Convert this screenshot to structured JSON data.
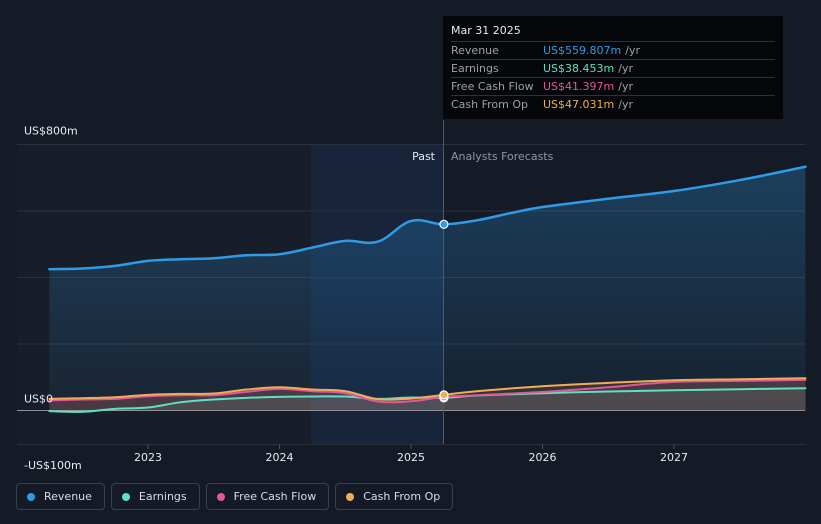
{
  "tooltip": {
    "date": "Mar 31 2025",
    "rows": [
      {
        "label": "Revenue",
        "value": "US$559.807m",
        "unit": "/yr",
        "color": "#2f9be6"
      },
      {
        "label": "Earnings",
        "value": "US$38.453m",
        "unit": "/yr",
        "color": "#5fe0c2"
      },
      {
        "label": "Free Cash Flow",
        "value": "US$41.397m",
        "unit": "/yr",
        "color": "#e0579a"
      },
      {
        "label": "Cash From Op",
        "value": "US$47.031m",
        "unit": "/yr",
        "color": "#f0ad57"
      }
    ]
  },
  "legend": [
    {
      "label": "Revenue",
      "color": "#2f9be6"
    },
    {
      "label": "Earnings",
      "color": "#5fe0c2"
    },
    {
      "label": "Free Cash Flow",
      "color": "#e0579a"
    },
    {
      "label": "Cash From Op",
      "color": "#f0ad57"
    }
  ],
  "chart_data": {
    "type": "line",
    "past_label": "Past",
    "forecast_label": "Analysts Forecasts",
    "divider_x": 2025.25,
    "ylim": [
      -100,
      800
    ],
    "y_tick_labels": [
      {
        "value": 800,
        "label": "US$800m"
      },
      {
        "value": 0,
        "label": "US$0"
      },
      {
        "value": -100,
        "label": "-US$100m"
      }
    ],
    "x_ticks": [
      {
        "value": 2023,
        "label": "2023"
      },
      {
        "value": 2024,
        "label": "2024"
      },
      {
        "value": 2025,
        "label": "2025"
      },
      {
        "value": 2026,
        "label": "2026"
      },
      {
        "value": 2027,
        "label": "2027"
      }
    ],
    "series": [
      {
        "name": "Revenue",
        "color": "#2f9be6",
        "points": [
          [
            2022.25,
            425
          ],
          [
            2022.5,
            427
          ],
          [
            2022.75,
            435
          ],
          [
            2023.0,
            450
          ],
          [
            2023.25,
            455
          ],
          [
            2023.5,
            458
          ],
          [
            2023.75,
            467
          ],
          [
            2024.0,
            470
          ],
          [
            2024.25,
            490
          ],
          [
            2024.5,
            510
          ],
          [
            2024.75,
            508
          ],
          [
            2025.0,
            570
          ],
          [
            2025.25,
            560
          ],
          [
            2025.5,
            572
          ],
          [
            2025.75,
            593
          ],
          [
            2026.0,
            612
          ],
          [
            2026.5,
            637
          ],
          [
            2027.0,
            660
          ],
          [
            2027.5,
            693
          ],
          [
            2028.0,
            733
          ]
        ]
      },
      {
        "name": "Earnings",
        "color": "#5fe0c2",
        "points": [
          [
            2022.25,
            -2
          ],
          [
            2022.5,
            -4
          ],
          [
            2022.75,
            5
          ],
          [
            2023.0,
            9
          ],
          [
            2023.25,
            25
          ],
          [
            2023.5,
            33
          ],
          [
            2023.75,
            38
          ],
          [
            2024.0,
            41
          ],
          [
            2024.25,
            42
          ],
          [
            2024.5,
            42
          ],
          [
            2024.75,
            35
          ],
          [
            2025.0,
            39
          ],
          [
            2025.25,
            38
          ],
          [
            2025.5,
            45
          ],
          [
            2026.0,
            52
          ],
          [
            2026.5,
            57
          ],
          [
            2027.0,
            61
          ],
          [
            2027.5,
            64
          ],
          [
            2028.0,
            67
          ]
        ]
      },
      {
        "name": "Free Cash Flow",
        "color": "#e0579a",
        "points": [
          [
            2022.25,
            30
          ],
          [
            2022.5,
            33
          ],
          [
            2022.75,
            35
          ],
          [
            2023.0,
            43
          ],
          [
            2023.25,
            46
          ],
          [
            2023.5,
            46
          ],
          [
            2023.75,
            56
          ],
          [
            2024.0,
            65
          ],
          [
            2024.25,
            58
          ],
          [
            2024.5,
            52
          ],
          [
            2024.75,
            27
          ],
          [
            2025.0,
            28
          ],
          [
            2025.25,
            41
          ],
          [
            2025.5,
            46
          ],
          [
            2026.0,
            56
          ],
          [
            2026.5,
            70
          ],
          [
            2027.0,
            86
          ],
          [
            2027.5,
            89
          ],
          [
            2028.0,
            92
          ]
        ]
      },
      {
        "name": "Cash From Op",
        "color": "#f0ad57",
        "points": [
          [
            2022.25,
            35
          ],
          [
            2022.5,
            37
          ],
          [
            2022.75,
            40
          ],
          [
            2023.0,
            47
          ],
          [
            2023.25,
            50
          ],
          [
            2023.5,
            51
          ],
          [
            2023.75,
            63
          ],
          [
            2024.0,
            70
          ],
          [
            2024.25,
            63
          ],
          [
            2024.5,
            58
          ],
          [
            2024.75,
            34
          ],
          [
            2025.0,
            36
          ],
          [
            2025.25,
            47
          ],
          [
            2025.5,
            58
          ],
          [
            2026.0,
            73
          ],
          [
            2026.5,
            83
          ],
          [
            2027.0,
            91
          ],
          [
            2027.5,
            94
          ],
          [
            2028.0,
            97
          ]
        ]
      }
    ]
  }
}
